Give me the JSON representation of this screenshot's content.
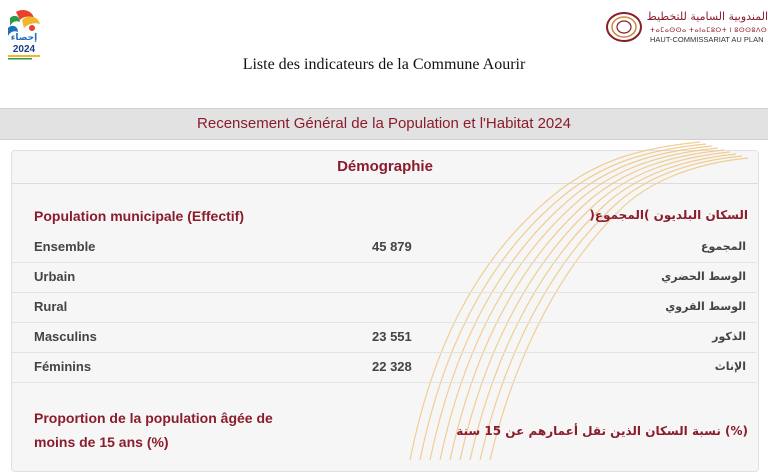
{
  "header": {
    "logo_left": {
      "year": "2024",
      "word": "إحصاء"
    },
    "logo_right": {
      "arabic": "المندوبية السامية للتخطيط",
      "tifinagh": "ⵜⴰⵎⴰⵙⵙⴰ ⵜⴰⵏⴰⵎⵓⵔⵜ ⵏ ⵓⵙⵙⵓⴷⵙ",
      "french": "HAUT-COMMISSARIAT AU PLAN"
    },
    "page_title": "Liste des indicateurs de la Commune Aourir"
  },
  "banner": {
    "title": "Recensement Général de la Population et l'Habitat 2024"
  },
  "section": {
    "title": "Démographie",
    "group1": {
      "title_fr": "Population municipale (Effectif)",
      "title_ar": "السكان البلديون )المجموع(",
      "rows": [
        {
          "fr": "Ensemble",
          "value": "45 879",
          "ar": "المجموع"
        },
        {
          "fr": "Urbain",
          "value": "",
          "ar": "الوسط الحضري"
        },
        {
          "fr": "Rural",
          "value": "",
          "ar": "الوسط القروي"
        },
        {
          "fr": "Masculins",
          "value": "23 551",
          "ar": "الذكور"
        },
        {
          "fr": "Féminins",
          "value": "22 328",
          "ar": "الإناث"
        }
      ]
    },
    "group2": {
      "title_fr_line1": "Proportion de la population âgée de",
      "title_fr_line2": "moins de 15 ans (%)",
      "title_ar": "(%) نسبة السكان الذين تقل أعمارهم عن 15 سنة"
    }
  },
  "colors": {
    "accent": "#8a1c2b",
    "banner_bg": "#e2e2e2",
    "card_bg": "#f6f6f6",
    "deco": "#f0c98a"
  }
}
